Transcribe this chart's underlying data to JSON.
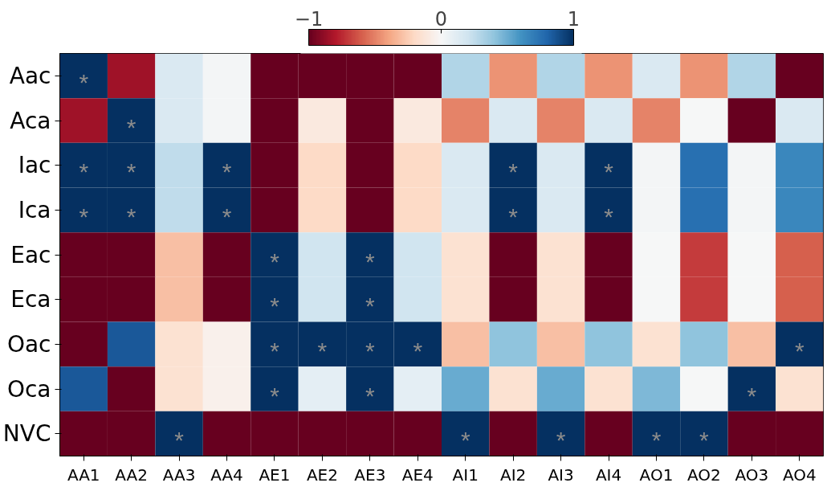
{
  "chart_data": {
    "type": "heatmap",
    "categories": [
      "AA1",
      "AA2",
      "AA3",
      "AA4",
      "AE1",
      "AE2",
      "AE3",
      "AE4",
      "AI1",
      "AI2",
      "AI3",
      "AI4",
      "AO1",
      "AO2",
      "AO3",
      "AO4"
    ],
    "y_categories": [
      "Aac",
      "Aca",
      "Iac",
      "Ica",
      "Eac",
      "Eca",
      "Oac",
      "Oca",
      "NVC"
    ],
    "cells": [
      [
        1,
        -0.85,
        0.15,
        0.02,
        -1,
        -1,
        -1,
        -1,
        0.3,
        -0.45,
        0.3,
        -0.45,
        0.15,
        -0.45,
        0.3,
        -1
      ],
      [
        -0.85,
        1,
        0.15,
        0.02,
        -1,
        -0.1,
        -1,
        -0.1,
        -0.5,
        0.15,
        -0.5,
        0.15,
        -0.5,
        0.0,
        -1,
        0.15
      ],
      [
        1,
        1,
        0.25,
        1,
        -1,
        -0.2,
        -1,
        -0.2,
        0.15,
        1,
        0.15,
        1,
        0.02,
        0.75,
        0.02,
        0.65
      ],
      [
        1,
        1,
        0.25,
        1,
        -1,
        -0.2,
        -1,
        -0.2,
        0.15,
        1,
        0.15,
        1,
        0.02,
        0.75,
        0.02,
        0.65
      ],
      [
        -1,
        -1,
        -0.3,
        -1,
        1,
        0.2,
        1,
        0.2,
        -0.15,
        -1,
        -0.15,
        -1,
        0.0,
        -0.7,
        0.0,
        -0.6
      ],
      [
        -1,
        -1,
        -0.3,
        -1,
        1,
        0.2,
        1,
        0.2,
        -0.15,
        -1,
        -0.15,
        -1,
        0.0,
        -0.7,
        0.0,
        -0.6
      ],
      [
        -1,
        0.85,
        -0.15,
        -0.05,
        1,
        1,
        1,
        1,
        -0.3,
        0.4,
        -0.3,
        0.4,
        -0.15,
        0.4,
        -0.3,
        1
      ],
      [
        0.85,
        -1,
        -0.15,
        -0.05,
        1,
        0.1,
        1,
        0.1,
        0.5,
        -0.15,
        0.5,
        -0.15,
        0.45,
        0.0,
        1,
        -0.15
      ],
      [
        -1,
        -1,
        1,
        -1,
        -1,
        -1,
        -1,
        -1,
        1,
        -1,
        1,
        -1,
        1,
        1,
        -1,
        -1
      ]
    ],
    "cell_labels": [
      [
        "*",
        null,
        null,
        null,
        null,
        null,
        null,
        null,
        null,
        null,
        null,
        null,
        null,
        null,
        null,
        null
      ],
      [
        null,
        "*",
        null,
        null,
        null,
        null,
        null,
        null,
        null,
        null,
        null,
        null,
        null,
        null,
        null,
        null
      ],
      [
        "*",
        "*",
        null,
        "*",
        null,
        null,
        null,
        null,
        null,
        "*",
        null,
        "*",
        null,
        null,
        null,
        null
      ],
      [
        "*",
        "*",
        null,
        "*",
        null,
        null,
        null,
        null,
        null,
        "*",
        null,
        "*",
        null,
        null,
        null,
        null
      ],
      [
        null,
        null,
        null,
        null,
        "*",
        null,
        "*",
        null,
        null,
        null,
        null,
        null,
        null,
        null,
        null,
        null
      ],
      [
        null,
        null,
        null,
        null,
        "*",
        null,
        "*",
        null,
        null,
        null,
        null,
        null,
        null,
        null,
        null,
        null
      ],
      [
        null,
        null,
        null,
        null,
        "*",
        "*",
        "*",
        "*",
        null,
        null,
        null,
        null,
        null,
        null,
        null,
        "*"
      ],
      [
        null,
        null,
        null,
        null,
        "*",
        null,
        "*",
        null,
        null,
        null,
        null,
        null,
        null,
        null,
        "*",
        null
      ],
      [
        null,
        null,
        "*",
        null,
        null,
        null,
        null,
        null,
        "*",
        null,
        "*",
        null,
        "*",
        "*",
        null,
        null
      ]
    ],
    "clim": [
      -1,
      1
    ],
    "cticks": [
      {
        "value": -1,
        "label": "−1"
      },
      0,
      1
    ]
  }
}
